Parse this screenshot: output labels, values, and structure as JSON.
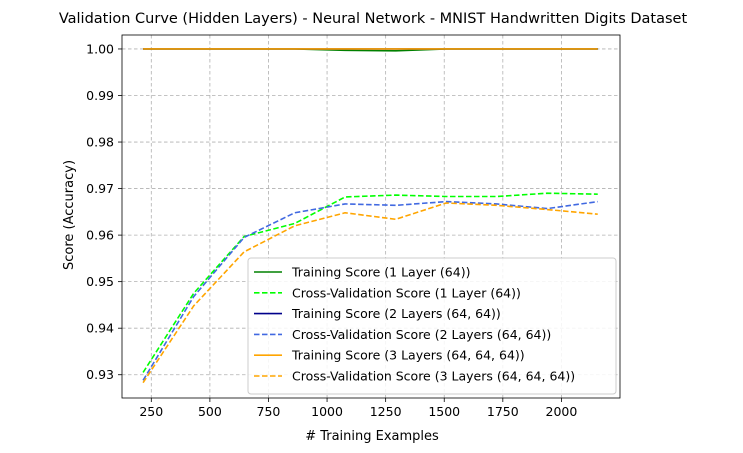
{
  "chart_data": {
    "type": "line",
    "title": "Validation Curve (Hidden Layers) - Neural Network - MNIST Handwritten Digits Dataset",
    "xlabel": "# Training Examples",
    "ylabel": "Score (Accuracy)",
    "xlim": [
      125,
      2250
    ],
    "ylim": [
      0.925,
      1.003
    ],
    "xticks": [
      250,
      500,
      750,
      1000,
      1250,
      1500,
      1750,
      2000
    ],
    "xtick_labels": [
      "250",
      "500",
      "750",
      "1000",
      "1250",
      "1500",
      "1750",
      "2000"
    ],
    "yticks": [
      0.93,
      0.94,
      0.95,
      0.96,
      0.97,
      0.98,
      0.99,
      1.0
    ],
    "ytick_labels": [
      "0.93",
      "0.94",
      "0.95",
      "0.96",
      "0.97",
      "0.98",
      "0.99",
      "1.00"
    ],
    "grid": true,
    "legend_position": "lower-right",
    "x": [
      215,
      431,
      646,
      862,
      1077,
      1293,
      1508,
      1724,
      1939,
      2155
    ],
    "series": [
      {
        "name": "Training Score (1 Layer (64))",
        "color": "#008000",
        "dash": false,
        "values": [
          1.0,
          1.0,
          1.0,
          1.0,
          0.9997,
          0.9996,
          1.0,
          1.0,
          1.0,
          1.0
        ]
      },
      {
        "name": "Cross-Validation Score (1 Layer (64))",
        "color": "#00ff00",
        "dash": true,
        "values": [
          0.9305,
          0.9475,
          0.9597,
          0.9625,
          0.9682,
          0.9686,
          0.9683,
          0.9683,
          0.969,
          0.9688
        ]
      },
      {
        "name": "Training Score (2 Layers (64, 64))",
        "color": "#00008b",
        "dash": false,
        "values": [
          1.0,
          1.0,
          1.0,
          1.0,
          1.0,
          1.0,
          1.0,
          1.0,
          1.0,
          1.0
        ]
      },
      {
        "name": "Cross-Validation Score (2 Layers (64, 64))",
        "color": "#4169e1",
        "dash": true,
        "values": [
          0.9288,
          0.9468,
          0.9595,
          0.9648,
          0.9667,
          0.9664,
          0.9672,
          0.9667,
          0.9657,
          0.9672
        ]
      },
      {
        "name": "Training Score (3 Layers (64, 64, 64))",
        "color": "#ffa500",
        "dash": false,
        "values": [
          1.0,
          1.0,
          1.0,
          1.0,
          1.0,
          1.0,
          1.0,
          1.0,
          1.0,
          1.0
        ]
      },
      {
        "name": "Cross-Validation Score (3 Layers (64, 64, 64))",
        "color": "#ffa500",
        "dash": true,
        "values": [
          0.9283,
          0.9448,
          0.9564,
          0.962,
          0.9648,
          0.9634,
          0.9669,
          0.9664,
          0.9655,
          0.9645
        ]
      }
    ]
  }
}
